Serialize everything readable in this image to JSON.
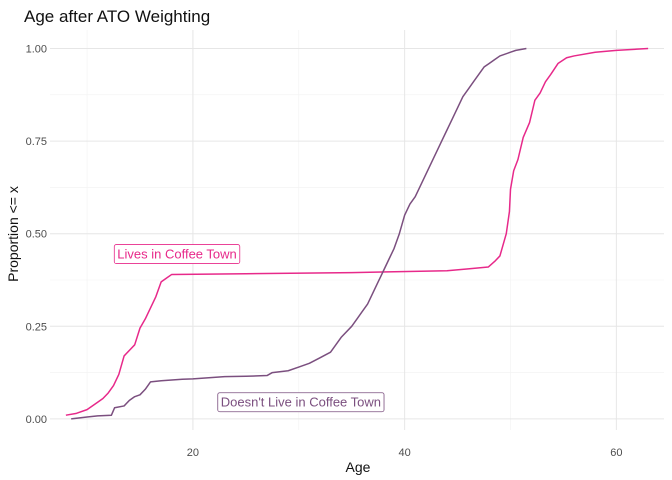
{
  "chart_data": {
    "type": "line",
    "title": "Age after ATO Weighting",
    "xlabel": "Age",
    "ylabel": "Proportion <= x",
    "xlim": [
      6.5,
      64.5
    ],
    "ylim": [
      -0.03,
      1.05
    ],
    "x_ticks": [
      20,
      40,
      60
    ],
    "y_ticks": [
      0.0,
      0.25,
      0.5,
      0.75,
      1.0
    ],
    "y_tick_labels": [
      "0.00",
      "0.25",
      "0.50",
      "0.75",
      "1.00"
    ],
    "grid": true,
    "legend": "none",
    "colors": {
      "lives": "#e7298a",
      "doesnt_live": "#7b4f7f"
    },
    "series": [
      {
        "name": "Lives in Coffee Town",
        "color": "#e7298a",
        "points": [
          [
            8,
            0.01
          ],
          [
            9,
            0.015
          ],
          [
            10,
            0.025
          ],
          [
            11,
            0.045
          ],
          [
            11.5,
            0.055
          ],
          [
            12,
            0.07
          ],
          [
            12.5,
            0.09
          ],
          [
            13,
            0.12
          ],
          [
            13.5,
            0.17
          ],
          [
            14,
            0.185
          ],
          [
            14.5,
            0.2
          ],
          [
            15,
            0.245
          ],
          [
            15.5,
            0.27
          ],
          [
            16,
            0.3
          ],
          [
            16.5,
            0.33
          ],
          [
            17,
            0.37
          ],
          [
            17.5,
            0.38
          ],
          [
            18,
            0.39
          ],
          [
            25,
            0.392
          ],
          [
            35,
            0.395
          ],
          [
            44,
            0.4
          ],
          [
            46,
            0.405
          ],
          [
            47.9,
            0.41
          ],
          [
            48.5,
            0.425
          ],
          [
            49,
            0.44
          ],
          [
            49.3,
            0.47
          ],
          [
            49.6,
            0.5
          ],
          [
            49.9,
            0.56
          ],
          [
            50,
            0.62
          ],
          [
            50.3,
            0.67
          ],
          [
            50.7,
            0.7
          ],
          [
            51.2,
            0.76
          ],
          [
            51.8,
            0.8
          ],
          [
            52.3,
            0.86
          ],
          [
            52.8,
            0.88
          ],
          [
            53.3,
            0.91
          ],
          [
            53.8,
            0.93
          ],
          [
            54.5,
            0.96
          ],
          [
            55.3,
            0.975
          ],
          [
            56,
            0.98
          ],
          [
            58,
            0.99
          ],
          [
            60,
            0.995
          ],
          [
            63,
            1.0
          ]
        ]
      },
      {
        "name": "Doesn't Live in Coffee Town",
        "color": "#7b4f7f",
        "points": [
          [
            8.5,
            0.0
          ],
          [
            10,
            0.005
          ],
          [
            11,
            0.008
          ],
          [
            12.3,
            0.01
          ],
          [
            12.6,
            0.03
          ],
          [
            13.5,
            0.035
          ],
          [
            14,
            0.05
          ],
          [
            14.5,
            0.06
          ],
          [
            15,
            0.065
          ],
          [
            15.5,
            0.08
          ],
          [
            16,
            0.1
          ],
          [
            17,
            0.103
          ],
          [
            18,
            0.105
          ],
          [
            19,
            0.107
          ],
          [
            20,
            0.108
          ],
          [
            21,
            0.11
          ],
          [
            22,
            0.112
          ],
          [
            23,
            0.114
          ],
          [
            25,
            0.115
          ],
          [
            27,
            0.117
          ],
          [
            27.5,
            0.125
          ],
          [
            29,
            0.13
          ],
          [
            30,
            0.14
          ],
          [
            31,
            0.15
          ],
          [
            32,
            0.165
          ],
          [
            33,
            0.18
          ],
          [
            33.5,
            0.2
          ],
          [
            34,
            0.22
          ],
          [
            35,
            0.25
          ],
          [
            35.5,
            0.27
          ],
          [
            36,
            0.29
          ],
          [
            36.5,
            0.31
          ],
          [
            37,
            0.34
          ],
          [
            37.5,
            0.37
          ],
          [
            38,
            0.4
          ],
          [
            38.5,
            0.43
          ],
          [
            39,
            0.46
          ],
          [
            39.5,
            0.5
          ],
          [
            40,
            0.55
          ],
          [
            40.5,
            0.58
          ],
          [
            41,
            0.6
          ],
          [
            41.5,
            0.63
          ],
          [
            42,
            0.66
          ],
          [
            42.5,
            0.69
          ],
          [
            43,
            0.72
          ],
          [
            43.5,
            0.75
          ],
          [
            44,
            0.78
          ],
          [
            44.5,
            0.81
          ],
          [
            45,
            0.84
          ],
          [
            45.5,
            0.87
          ],
          [
            46,
            0.89
          ],
          [
            46.5,
            0.91
          ],
          [
            47,
            0.93
          ],
          [
            47.5,
            0.95
          ],
          [
            48,
            0.96
          ],
          [
            48.5,
            0.97
          ],
          [
            49,
            0.98
          ],
          [
            50,
            0.99
          ],
          [
            50.5,
            0.995
          ],
          [
            51.5,
            1.0
          ]
        ]
      }
    ],
    "annotations": [
      {
        "text": "Lives in Coffee Town",
        "x": 18.5,
        "y": 0.445,
        "color": "#e7298a"
      },
      {
        "text": "Doesn't Live in Coffee Town",
        "x": 30.2,
        "y": 0.045,
        "color": "#7b4f7f"
      }
    ]
  }
}
